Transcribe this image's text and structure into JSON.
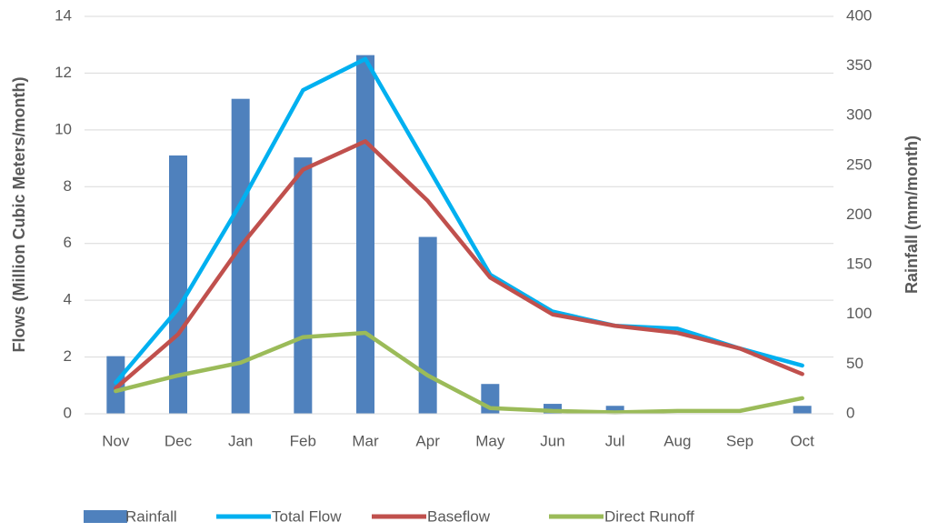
{
  "chart_data": {
    "type": "combo",
    "categories": [
      "Nov",
      "Dec",
      "Jan",
      "Feb",
      "Mar",
      "Apr",
      "May",
      "Jun",
      "Jul",
      "Aug",
      "Sep",
      "Oct"
    ],
    "ylabel": "Flows (Million Cubic Meters/month)",
    "y2label": "Rainfall (mm/month)",
    "ylim": [
      0,
      14
    ],
    "yticks": [
      0,
      2,
      4,
      6,
      8,
      10,
      12,
      14
    ],
    "y2lim": [
      0,
      400
    ],
    "y2ticks": [
      0,
      50,
      100,
      150,
      200,
      250,
      300,
      350,
      400
    ],
    "grid": true,
    "legend": "bottom",
    "series": [
      {
        "name": "Rainfall",
        "type": "bar",
        "axis": "y2",
        "color": "#4f81bd",
        "values": [
          58,
          260,
          317,
          258,
          361,
          178,
          30,
          10,
          8,
          0,
          0,
          8
        ]
      },
      {
        "name": "Total Flow",
        "type": "line",
        "color": "#00b0f0",
        "values": [
          1.1,
          3.7,
          7.4,
          11.4,
          12.5,
          8.7,
          4.9,
          3.6,
          3.1,
          3.0,
          2.3,
          1.7
        ]
      },
      {
        "name": "Baseflow",
        "type": "line",
        "color": "#c0504d",
        "values": [
          0.9,
          2.8,
          5.9,
          8.6,
          9.6,
          7.5,
          4.8,
          3.5,
          3.1,
          2.85,
          2.3,
          1.4
        ]
      },
      {
        "name": "Direct Runoff",
        "type": "line",
        "color": "#9bbb59",
        "values": [
          0.8,
          1.35,
          1.8,
          2.7,
          2.85,
          1.35,
          0.2,
          0.1,
          0.05,
          0.1,
          0.1,
          0.55
        ]
      }
    ]
  }
}
